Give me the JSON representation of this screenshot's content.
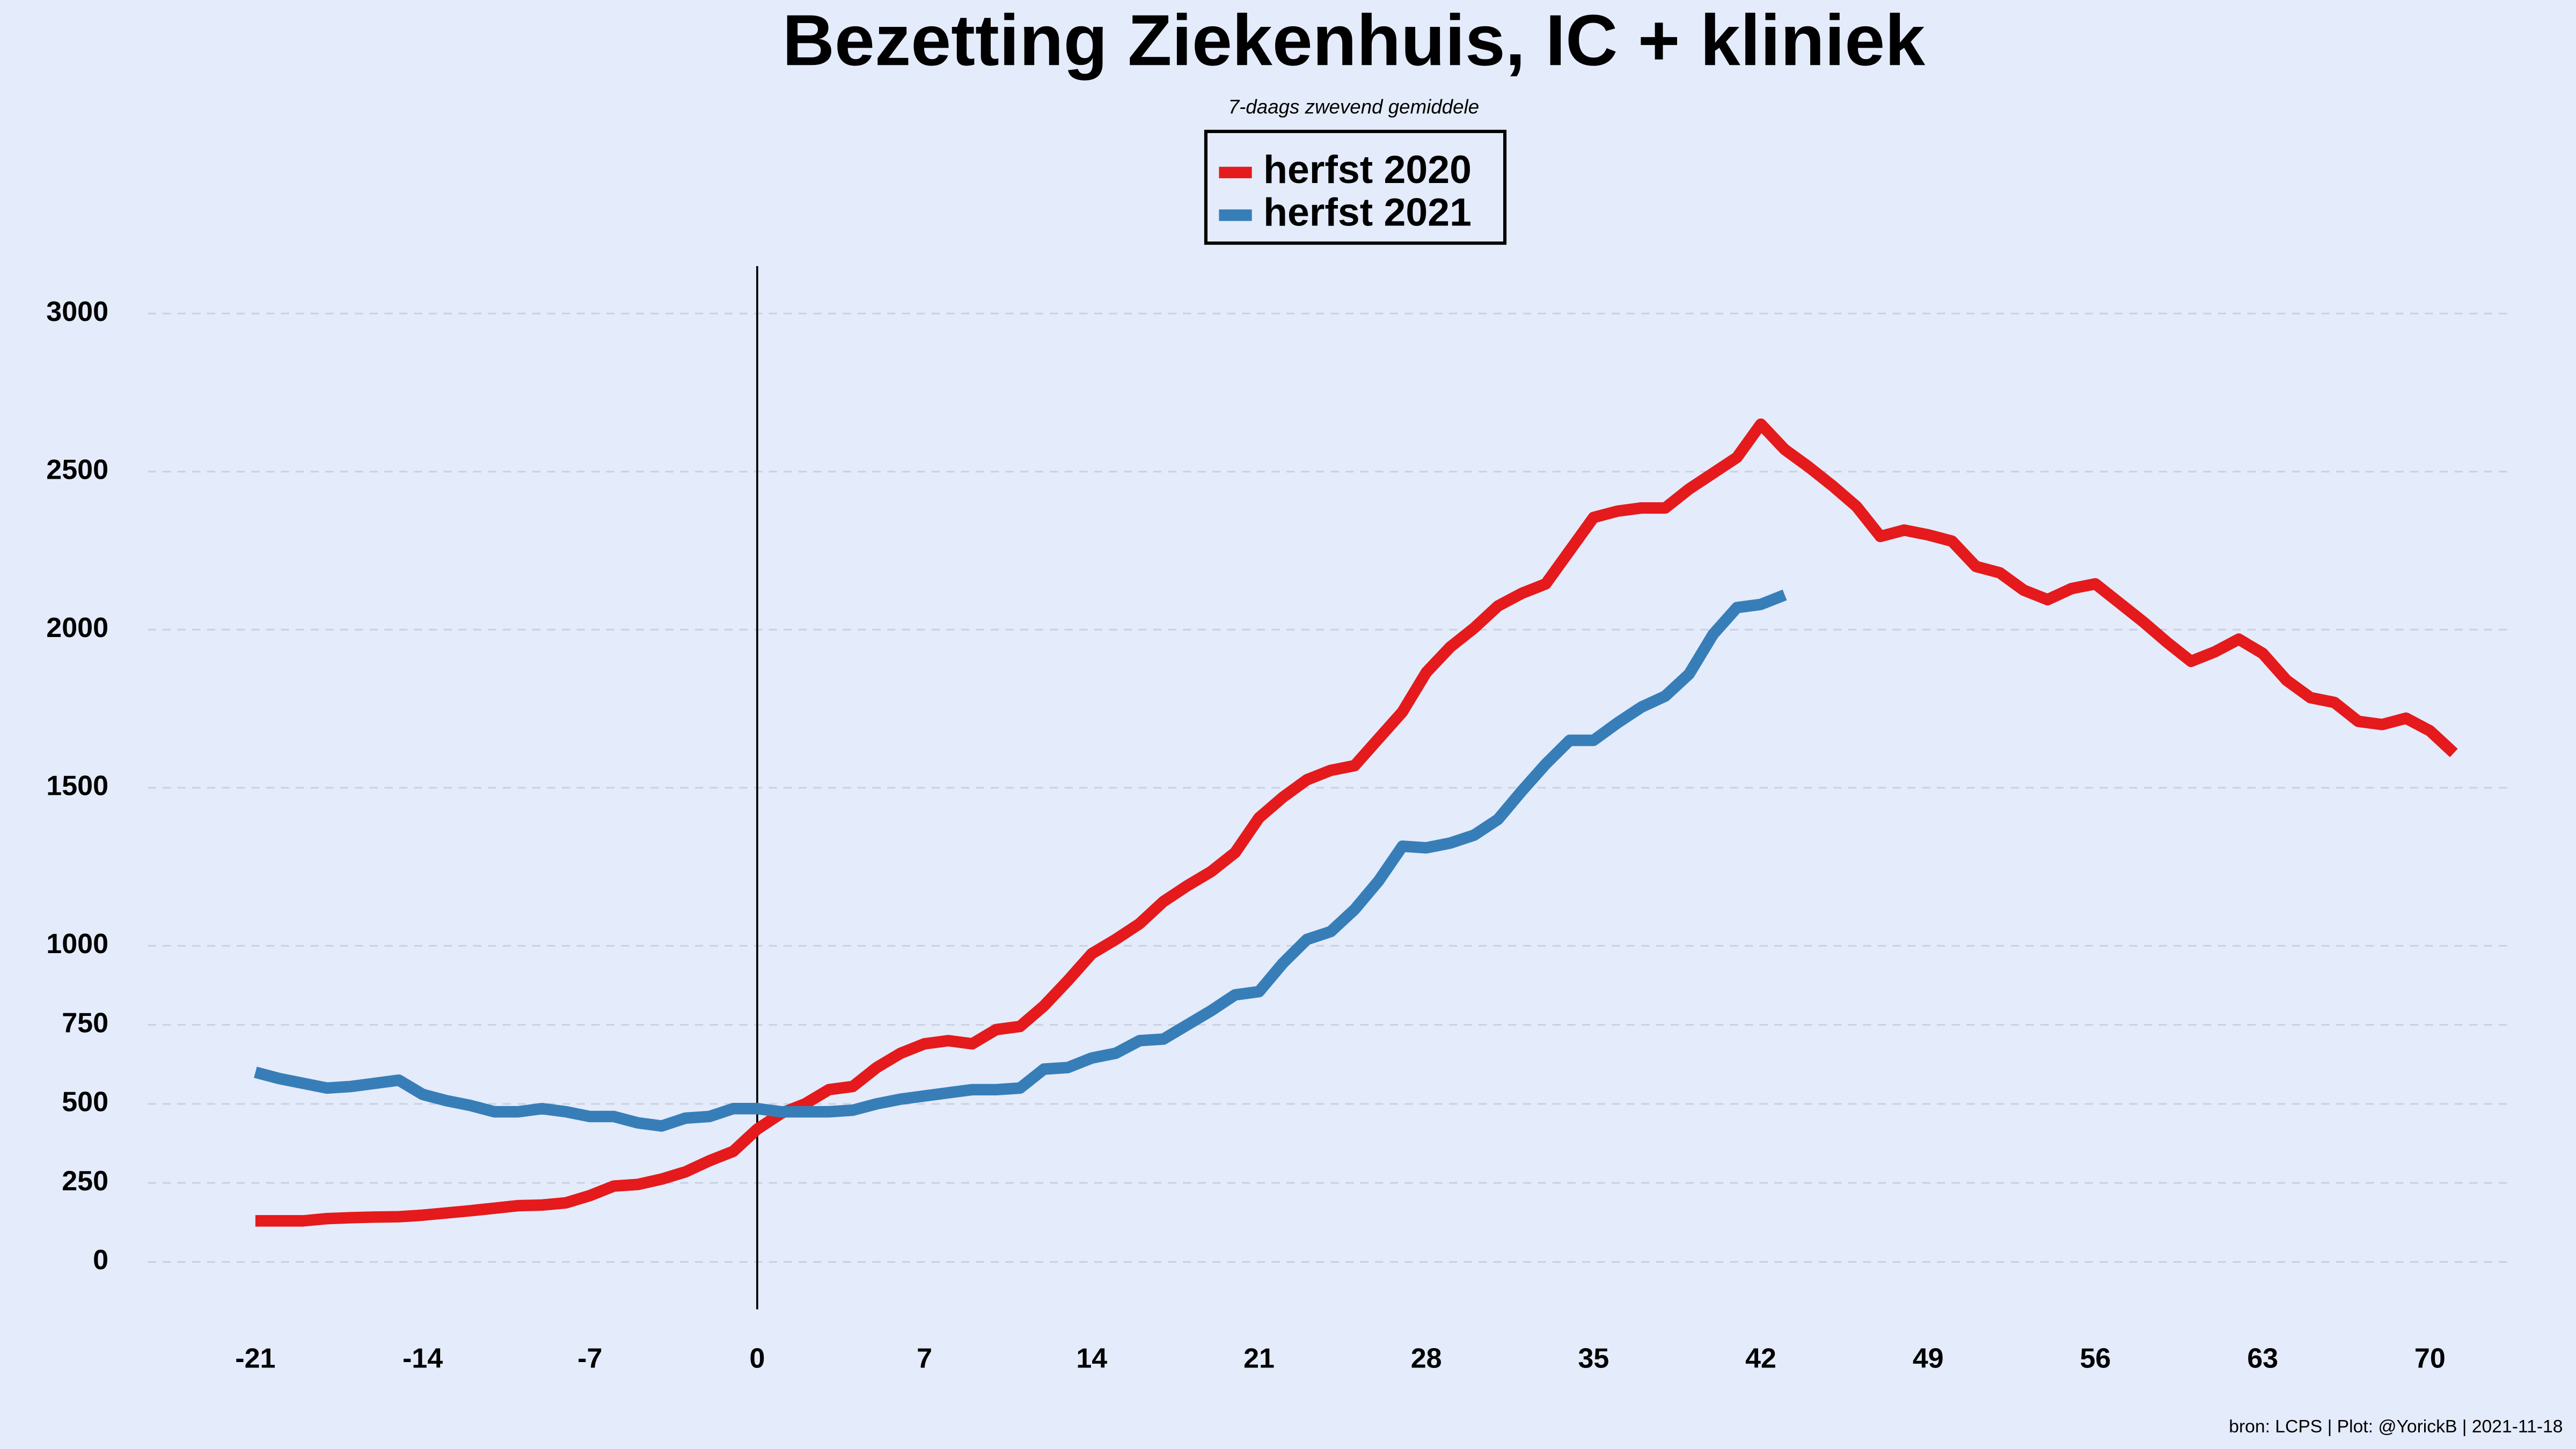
{
  "chart_data": {
    "type": "line",
    "title": "Bezetting Ziekenhuis, IC + kliniek",
    "subtitle": "7-daags zwevend gemiddele",
    "caption": "bron: LCPS  | Plot: @YorickB |  2021-11-18",
    "legend": "top",
    "grid": true,
    "vline": 0,
    "xlim": [
      -25.5,
      73.5
    ],
    "ylim": [
      -150,
      3150
    ],
    "xticks": [
      -21,
      -14,
      -7,
      0,
      7,
      14,
      21,
      28,
      35,
      42,
      49,
      56,
      63,
      70
    ],
    "yticks": [
      0,
      250,
      500,
      750,
      1000,
      1500,
      2000,
      2500,
      3000
    ],
    "series": [
      {
        "name": "herfst 2020",
        "color": "#e41a1c",
        "x": [
          -21,
          -20,
          -19,
          -18,
          -17,
          -16,
          -15,
          -14,
          -13,
          -12,
          -11,
          -10,
          -9,
          -8,
          -7,
          -6,
          -5,
          -4,
          -3,
          -2,
          -1,
          0,
          1,
          2,
          3,
          4,
          5,
          6,
          7,
          8,
          9,
          10,
          11,
          12,
          13,
          14,
          15,
          16,
          17,
          18,
          19,
          20,
          21,
          22,
          23,
          24,
          25,
          26,
          27,
          28,
          29,
          30,
          31,
          32,
          33,
          34,
          35,
          36,
          37,
          38,
          39,
          40,
          41,
          42,
          43,
          44,
          45,
          46,
          47,
          48,
          49,
          50,
          51,
          52,
          53,
          54,
          55,
          56,
          57,
          58,
          59,
          60,
          61,
          62,
          63,
          64,
          65,
          66,
          67,
          68,
          69,
          70,
          71
        ],
        "values": [
          130,
          130,
          130,
          137,
          140,
          142,
          143,
          148,
          155,
          162,
          170,
          178,
          180,
          187,
          210,
          240,
          245,
          262,
          285,
          320,
          350,
          420,
          470,
          500,
          545,
          555,
          615,
          660,
          690,
          700,
          690,
          735,
          745,
          810,
          890,
          975,
          1020,
          1070,
          1140,
          1190,
          1235,
          1295,
          1405,
          1470,
          1525,
          1555,
          1570,
          1655,
          1740,
          1865,
          1945,
          2005,
          2075,
          2115,
          2145,
          2250,
          2355,
          2375,
          2385,
          2385,
          2445,
          2495,
          2545,
          2650,
          2570,
          2515,
          2455,
          2390,
          2295,
          2315,
          2300,
          2280,
          2200,
          2180,
          2125,
          2095,
          2130,
          2145,
          2085,
          2025,
          1960,
          1900,
          1930,
          1970,
          1925,
          1840,
          1785,
          1770,
          1710,
          1700,
          1720,
          1680,
          1610
        ]
      },
      {
        "name": "herfst 2021",
        "color": "#377eb8",
        "x": [
          -21,
          -20,
          -19,
          -18,
          -17,
          -16,
          -15,
          -14,
          -13,
          -12,
          -11,
          -10,
          -9,
          -8,
          -7,
          -6,
          -5,
          -4,
          -3,
          -2,
          -1,
          0,
          1,
          2,
          3,
          4,
          5,
          6,
          7,
          8,
          9,
          10,
          11,
          12,
          13,
          14,
          15,
          16,
          17,
          18,
          19,
          20,
          21,
          22,
          23,
          24,
          25,
          26,
          27,
          28,
          29,
          30,
          31,
          32,
          33,
          34,
          35,
          36,
          37,
          38,
          39,
          40,
          41,
          42,
          43
        ],
        "values": [
          600,
          580,
          565,
          550,
          555,
          565,
          575,
          530,
          510,
          495,
          475,
          475,
          485,
          475,
          460,
          460,
          440,
          430,
          455,
          460,
          485,
          485,
          475,
          475,
          475,
          480,
          500,
          515,
          525,
          535,
          545,
          545,
          550,
          610,
          615,
          645,
          660,
          700,
          705,
          750,
          795,
          845,
          855,
          945,
          1020,
          1045,
          1115,
          1205,
          1315,
          1310,
          1325,
          1350,
          1400,
          1490,
          1575,
          1650,
          1650,
          1705,
          1755,
          1790,
          1860,
          1985,
          2070,
          2080,
          2110
        ]
      }
    ]
  }
}
